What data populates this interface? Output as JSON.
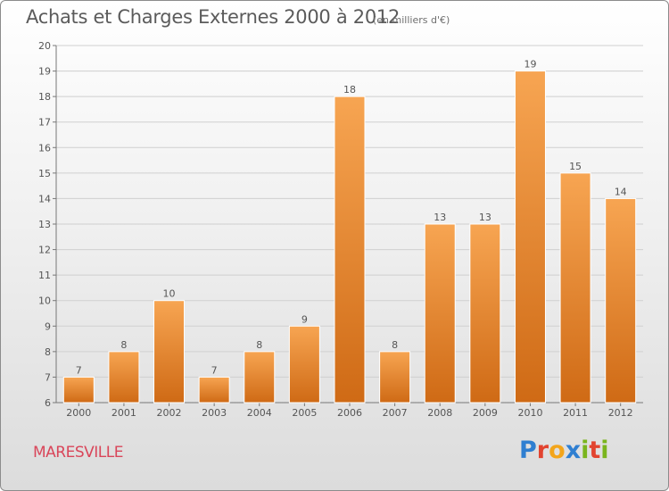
{
  "title": "Achats et Charges Externes 2000 à 2012",
  "subtitle": "(en milliers d'€)",
  "commune": "MARESVILLE",
  "logo": {
    "letters": [
      "P",
      "r",
      "o",
      "x",
      "i",
      "t",
      "i"
    ],
    "colors": [
      "#2f7fd1",
      "#e2432f",
      "#f3a51b",
      "#2f7fd1",
      "#7ab51d",
      "#e2432f",
      "#7ab51d"
    ]
  },
  "colors": {
    "bar_light": "#f7a552",
    "bar_dark": "#cf6a15",
    "grid": "#cfcfcf",
    "text": "#555555"
  },
  "chart_data": {
    "type": "bar",
    "title": "Achats et Charges Externes 2000 à 2012",
    "subtitle": "(en milliers d'€)",
    "xlabel": "",
    "ylabel": "",
    "categories": [
      "2000",
      "2001",
      "2002",
      "2003",
      "2004",
      "2005",
      "2006",
      "2007",
      "2008",
      "2009",
      "2010",
      "2011",
      "2012"
    ],
    "values": [
      7,
      8,
      10,
      7,
      8,
      9,
      18,
      8,
      13,
      13,
      19,
      15,
      14
    ],
    "ylim": [
      6,
      20
    ],
    "yticks": [
      6,
      7,
      8,
      9,
      10,
      11,
      12,
      13,
      14,
      15,
      16,
      17,
      18,
      19,
      20
    ],
    "grid": true,
    "data_labels": true
  }
}
